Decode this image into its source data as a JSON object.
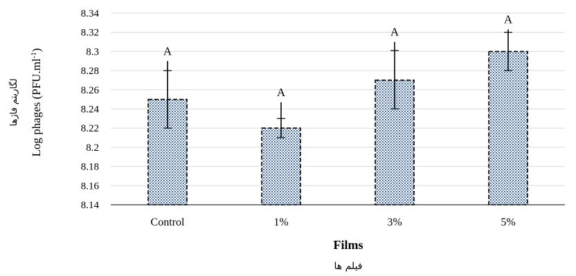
{
  "chart_data": {
    "type": "bar",
    "categories": [
      "Control",
      "1%",
      "3%",
      "5%"
    ],
    "values": [
      8.25,
      8.22,
      8.27,
      8.3
    ],
    "error_upper": [
      8.29,
      8.247,
      8.31,
      8.323
    ],
    "error_lower": [
      8.22,
      8.21,
      8.24,
      8.28
    ],
    "inner_tick": [
      8.28,
      8.23,
      8.301,
      8.32
    ],
    "significance_labels": [
      "A",
      "A",
      "A",
      "A"
    ],
    "xlabel": "Films",
    "xlabel_persian": "فیلم ها",
    "ylabel": "Log phages (PFU.ml",
    "ylabel_superscript": "-1",
    "ylabel_close": ")",
    "ylabel_persian": "لگاریتم فاژها",
    "ylim": [
      8.14,
      8.34
    ],
    "yticks": [
      "8.14",
      "8.16",
      "8.18",
      "8.2",
      "8.22",
      "8.24",
      "8.26",
      "8.28",
      "8.3",
      "8.32",
      "8.34"
    ],
    "gridlines": true,
    "legend": "none",
    "bar_fill_pattern": "blue dotted checker",
    "bar_border": "black dashed",
    "colors": {
      "pattern_dot": "#4a6fa5",
      "grid": "#d9d9d9",
      "axis": "#000000"
    }
  }
}
